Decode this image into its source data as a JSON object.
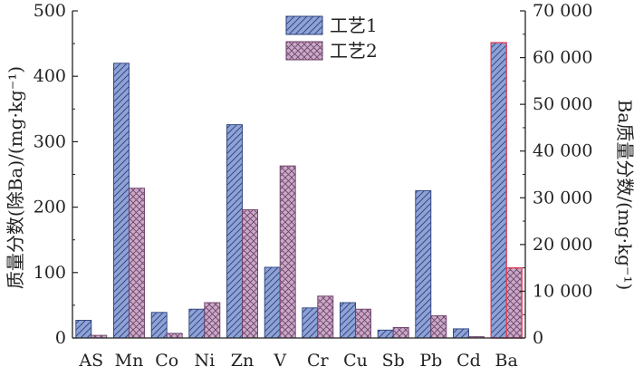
{
  "chart_data": {
    "type": "bar",
    "categories": [
      "AS",
      "Mn",
      "Co",
      "Ni",
      "Zn",
      "V",
      "Cr",
      "Cu",
      "Sb",
      "Pb",
      "Cd",
      "Ba"
    ],
    "series": [
      {
        "name": "工艺1",
        "values": [
          27,
          420,
          39,
          44,
          326,
          108,
          46,
          54,
          12,
          225,
          14,
          63200
        ],
        "color": "#8ea2d6",
        "edge": "#2b3f7a"
      },
      {
        "name": "工艺2",
        "values": [
          4,
          229,
          7,
          54,
          196,
          263,
          64,
          44,
          16,
          34,
          2,
          15000
        ],
        "color": "#c9a9c7",
        "edge": "#6a3f66"
      }
    ],
    "secondary_axis_category": "Ba",
    "secondary_edge_color": "#e0405a",
    "ylabel": "质量分数(除Ba)/(mg·kg⁻¹)",
    "ylim": [
      0,
      500
    ],
    "yticks": [
      0,
      100,
      200,
      300,
      400,
      500
    ],
    "ytick_labels": [
      "0",
      "100",
      "200",
      "300",
      "400",
      "500"
    ],
    "y2label": "Ba质量分数/(mg·kg⁻¹)",
    "y2lim": [
      0,
      70000
    ],
    "y2ticks": [
      0,
      10000,
      20000,
      30000,
      40000,
      50000,
      60000,
      70000
    ],
    "y2tick_labels": [
      "0",
      "10 000",
      "20 000",
      "30 000",
      "40 000",
      "50 000",
      "60 000",
      "70 000"
    ],
    "legend_position": "top-center",
    "grid": false
  }
}
